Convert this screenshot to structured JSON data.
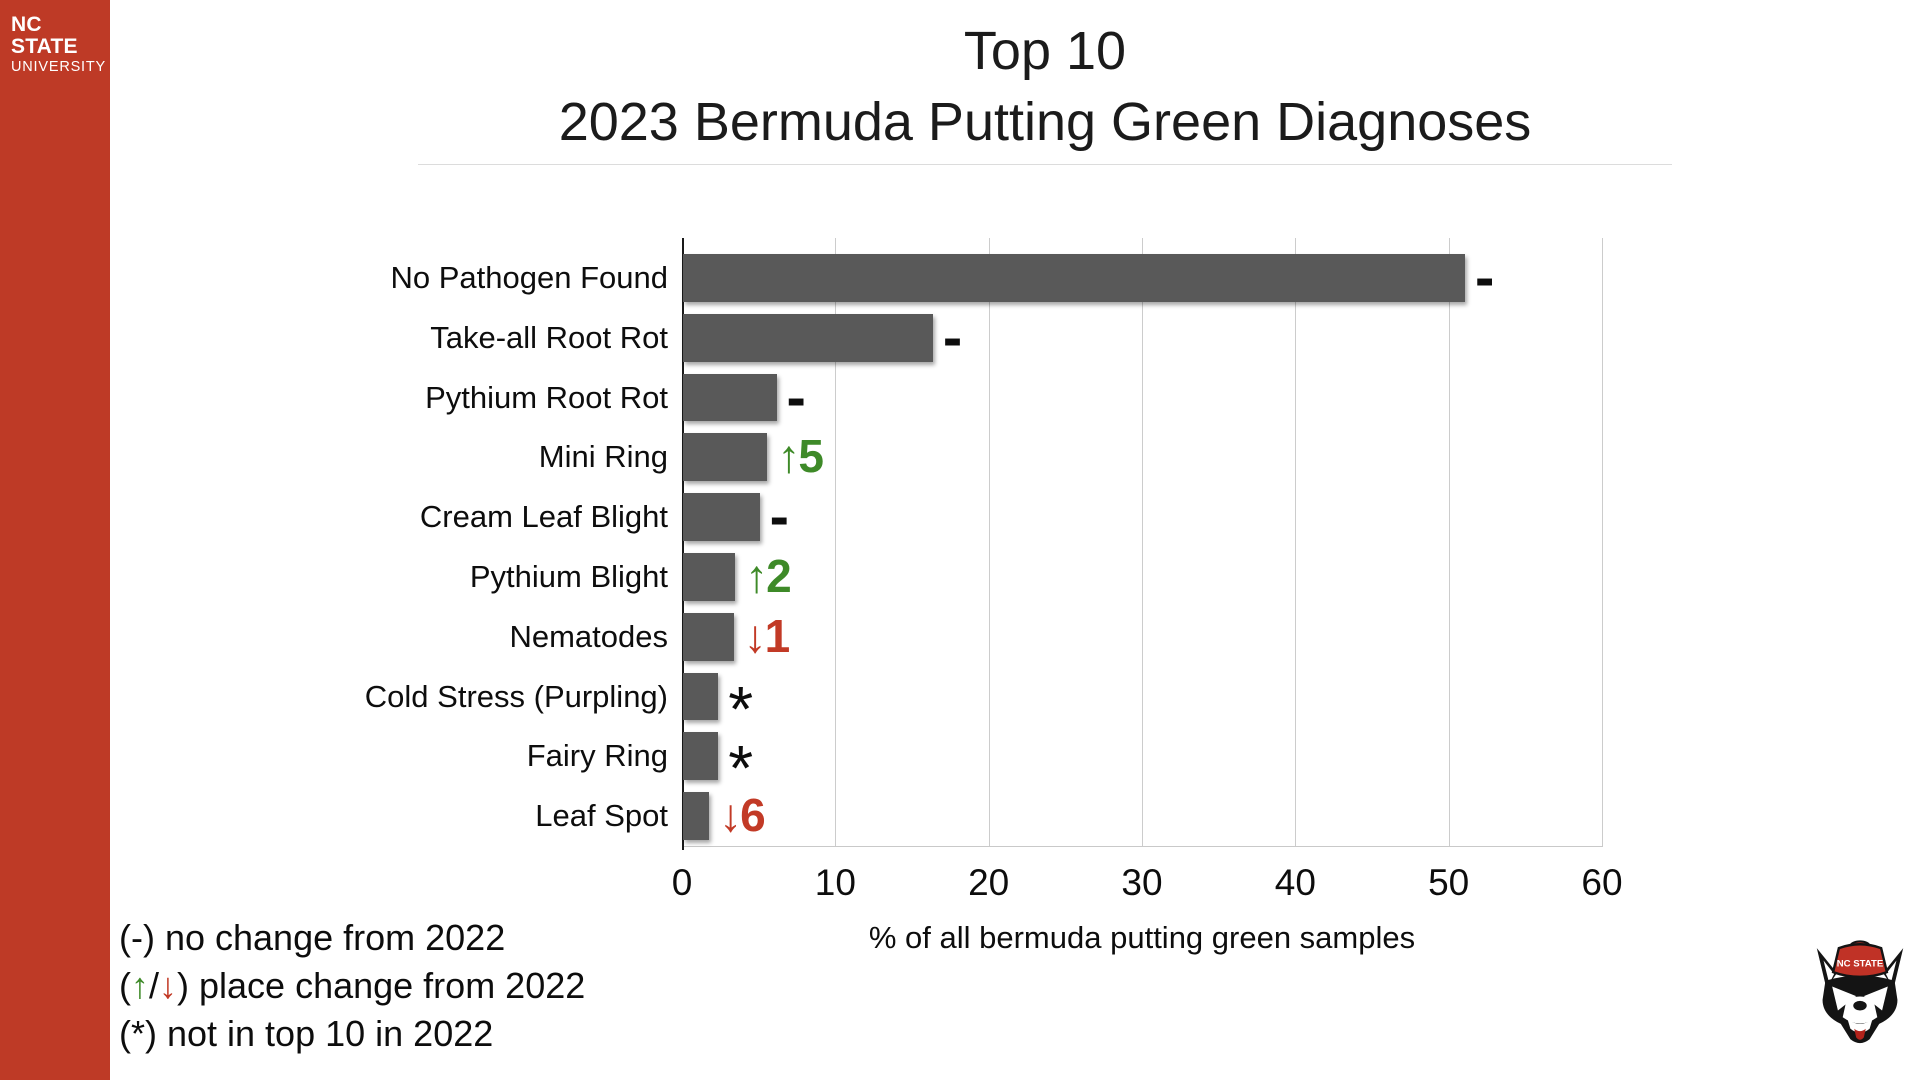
{
  "sidebar": {
    "logo_line1": "NC STATE",
    "logo_line2": "UNIVERSITY",
    "background_color": "#BE3A26"
  },
  "header": {
    "title_line1": "Top 10",
    "title_line2": "2023 Bermuda Putting Green Diagnoses"
  },
  "chart_data": {
    "type": "bar",
    "orientation": "horizontal",
    "title": "Top 10 2023 Bermuda Putting Green Diagnoses",
    "xlabel": "% of all bermuda putting green samples",
    "xlim": [
      0,
      60
    ],
    "xticks": [
      0,
      10,
      20,
      30,
      40,
      50,
      60
    ],
    "grid": "vertical-only",
    "legend_position": "bottom-left",
    "bar_color": "#595959",
    "categories": [
      "No Pathogen Found",
      "Take-all Root Rot",
      "Pythium Root Rot",
      "Mini Ring",
      "Cream Leaf Blight",
      "Pythium Blight",
      "Nematodes",
      "Cold Stress (Purpling)",
      "Fairy Ring",
      "Leaf Spot"
    ],
    "values": [
      51,
      16.3,
      6.1,
      5.5,
      5.0,
      3.4,
      3.3,
      2.3,
      2.3,
      1.7
    ],
    "markers": [
      "-",
      "-",
      "-",
      "↑5",
      "-",
      "↑2",
      "↓1",
      "*",
      "*",
      "↓6"
    ],
    "marker_types": [
      "same",
      "same",
      "same",
      "up",
      "same",
      "up",
      "down",
      "new",
      "new",
      "down"
    ],
    "marker_colors": {
      "up": "#3E8A28",
      "down": "#C23A26",
      "same": "#0d0d0d",
      "new": "#0d0d0d"
    }
  },
  "legend": {
    "line1": "(-) no change from 2022",
    "line2_open": "(",
    "line2_up_arrow": "↑",
    "line2_slash": "/",
    "line2_down_arrow": "↓",
    "line2_rest": ") place change from 2022",
    "line3": "(*) not in top 10 in 2022"
  },
  "wolf_badge": {
    "cap_text": "NC STATE"
  }
}
